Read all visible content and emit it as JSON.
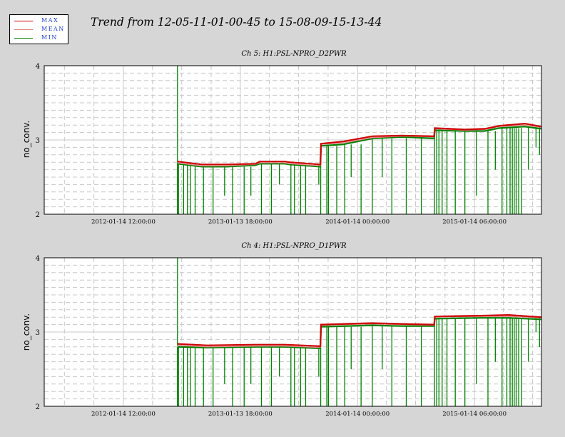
{
  "page_title": "Trend from 12-05-11-01-00-45 to 15-08-09-15-13-44",
  "legend": {
    "items": [
      {
        "label": "MAX",
        "color": "#cc0000"
      },
      {
        "label": "MEAN",
        "color": "#e08080"
      },
      {
        "label": "MIN",
        "color": "#008000"
      }
    ]
  },
  "colors": {
    "max": "#cc0000",
    "mean": "#e08080",
    "min": "#008000",
    "grid": "#c8c8c8"
  },
  "chart_data": [
    {
      "type": "line",
      "title": "Ch 5: H1:PSL-NPRO_D2PWR",
      "ylabel": "no_conv.",
      "xlabel": "",
      "ylim": [
        2,
        4
      ],
      "yticks": [
        2,
        3,
        4
      ],
      "xlim": [
        "2011-05-12",
        "2015-08-11"
      ],
      "xticks": [
        {
          "date": "2012-01-14",
          "label": "2012-01-14 12:00:00"
        },
        {
          "date": "2013-01-13",
          "label": "2013-01-13 18:00:00"
        },
        {
          "date": "2014-01-14",
          "label": "2014-01-14 00:00:00"
        },
        {
          "date": "2015-01-14",
          "label": "2015-01-14 06:00:00"
        }
      ],
      "data_start": "2012-07-01",
      "spike": {
        "date": "2012-07-01",
        "min": 2.68,
        "max": 4.0
      },
      "series": [
        {
          "name": "MAX",
          "points": [
            [
              "2012-07-01",
              2.71
            ],
            [
              "2012-09-15",
              2.67
            ],
            [
              "2012-12-01",
              2.67
            ],
            [
              "2013-03-01",
              2.68
            ],
            [
              "2013-03-15",
              2.71
            ],
            [
              "2013-06-01",
              2.71
            ],
            [
              "2013-06-15",
              2.7
            ],
            [
              "2013-09-20",
              2.67
            ],
            [
              "2013-09-22",
              2.95
            ],
            [
              "2013-12-01",
              2.98
            ],
            [
              "2014-03-01",
              3.05
            ],
            [
              "2014-06-01",
              3.06
            ],
            [
              "2014-09-10",
              3.05
            ],
            [
              "2014-09-12",
              3.16
            ],
            [
              "2014-12-15",
              3.14
            ],
            [
              "2015-02-15",
              3.15
            ],
            [
              "2015-04-01",
              3.19
            ],
            [
              "2015-06-20",
              3.22
            ],
            [
              "2015-08-11",
              3.18
            ]
          ]
        },
        {
          "name": "MEAN",
          "points": [
            [
              "2012-07-01",
              2.69
            ],
            [
              "2012-09-15",
              2.65
            ],
            [
              "2012-12-01",
              2.65
            ],
            [
              "2013-03-01",
              2.67
            ],
            [
              "2013-03-15",
              2.69
            ],
            [
              "2013-06-01",
              2.69
            ],
            [
              "2013-06-15",
              2.68
            ],
            [
              "2013-09-20",
              2.65
            ],
            [
              "2013-09-22",
              2.94
            ],
            [
              "2013-12-01",
              2.96
            ],
            [
              "2014-03-01",
              3.03
            ],
            [
              "2014-06-01",
              3.05
            ],
            [
              "2014-09-10",
              3.04
            ],
            [
              "2014-09-12",
              3.15
            ],
            [
              "2014-12-15",
              3.13
            ],
            [
              "2015-02-15",
              3.14
            ],
            [
              "2015-04-01",
              3.18
            ],
            [
              "2015-06-20",
              3.2
            ],
            [
              "2015-08-11",
              3.17
            ]
          ]
        },
        {
          "name": "MIN",
          "points": [
            [
              "2012-07-01",
              2.68
            ],
            [
              "2012-09-15",
              2.64
            ],
            [
              "2012-12-01",
              2.64
            ],
            [
              "2013-03-01",
              2.66
            ],
            [
              "2013-03-15",
              2.68
            ],
            [
              "2013-06-01",
              2.68
            ],
            [
              "2013-06-15",
              2.67
            ],
            [
              "2013-09-20",
              2.64
            ],
            [
              "2013-09-22",
              2.92
            ],
            [
              "2013-12-01",
              2.94
            ],
            [
              "2014-03-01",
              3.02
            ],
            [
              "2014-06-01",
              3.04
            ],
            [
              "2014-09-10",
              3.02
            ],
            [
              "2014-09-12",
              3.13
            ],
            [
              "2014-12-15",
              3.12
            ],
            [
              "2015-02-15",
              3.12
            ],
            [
              "2015-04-01",
              3.16
            ],
            [
              "2015-06-20",
              3.18
            ],
            [
              "2015-08-11",
              3.15
            ]
          ]
        }
      ],
      "dropouts": [
        {
          "date": "2012-07-04",
          "min": 2.0
        },
        {
          "date": "2012-07-20",
          "min": 2.0
        },
        {
          "date": "2012-08-01",
          "min": 2.0
        },
        {
          "date": "2012-08-10",
          "min": 2.0
        },
        {
          "date": "2012-08-25",
          "min": 2.0
        },
        {
          "date": "2012-09-20",
          "min": 2.0
        },
        {
          "date": "2012-10-20",
          "min": 2.0
        },
        {
          "date": "2012-11-25",
          "min": 2.25
        },
        {
          "date": "2012-12-20",
          "min": 2.0
        },
        {
          "date": "2013-01-25",
          "min": 2.0
        },
        {
          "date": "2013-02-15",
          "min": 2.25
        },
        {
          "date": "2013-03-20",
          "min": 2.0
        },
        {
          "date": "2013-04-20",
          "min": 2.0
        },
        {
          "date": "2013-05-15",
          "min": 2.4
        },
        {
          "date": "2013-06-20",
          "min": 2.0
        },
        {
          "date": "2013-07-01",
          "min": 2.0
        },
        {
          "date": "2013-07-20",
          "min": 2.0
        },
        {
          "date": "2013-08-05",
          "min": 2.0
        },
        {
          "date": "2013-09-15",
          "min": 2.4
        },
        {
          "date": "2013-09-21",
          "min": 2.0
        },
        {
          "date": "2013-10-10",
          "min": 2.0
        },
        {
          "date": "2013-10-15",
          "min": 2.0
        },
        {
          "date": "2013-11-10",
          "min": 2.0
        },
        {
          "date": "2013-12-05",
          "min": 2.0
        },
        {
          "date": "2013-12-25",
          "min": 2.5
        },
        {
          "date": "2014-01-25",
          "min": 2.0
        },
        {
          "date": "2014-03-01",
          "min": 2.0
        },
        {
          "date": "2014-04-01",
          "min": 2.5
        },
        {
          "date": "2014-05-01",
          "min": 2.0
        },
        {
          "date": "2014-06-15",
          "min": 2.0
        },
        {
          "date": "2014-08-01",
          "min": 2.0
        },
        {
          "date": "2014-09-11",
          "min": 2.0
        },
        {
          "date": "2014-09-18",
          "min": 2.0
        },
        {
          "date": "2014-09-25",
          "min": 2.0
        },
        {
          "date": "2014-10-05",
          "min": 2.0
        },
        {
          "date": "2014-10-20",
          "min": 2.0
        },
        {
          "date": "2014-11-15",
          "min": 2.0
        },
        {
          "date": "2014-12-15",
          "min": 2.0
        },
        {
          "date": "2015-01-20",
          "min": 2.25
        },
        {
          "date": "2015-02-25",
          "min": 2.0
        },
        {
          "date": "2015-03-20",
          "min": 2.6
        },
        {
          "date": "2015-04-10",
          "min": 2.0
        },
        {
          "date": "2015-04-25",
          "min": 2.0
        },
        {
          "date": "2015-05-05",
          "min": 2.0
        },
        {
          "date": "2015-05-12",
          "min": 2.0
        },
        {
          "date": "2015-05-18",
          "min": 2.0
        },
        {
          "date": "2015-05-24",
          "min": 2.0
        },
        {
          "date": "2015-06-01",
          "min": 2.0
        },
        {
          "date": "2015-06-10",
          "min": 2.0
        },
        {
          "date": "2015-07-01",
          "min": 2.6
        },
        {
          "date": "2015-07-25",
          "min": 2.9
        },
        {
          "date": "2015-08-05",
          "min": 2.8
        }
      ]
    },
    {
      "type": "line",
      "title": "Ch 4: H1:PSL-NPRO_D1PWR",
      "ylabel": "no_conv.",
      "xlabel": "",
      "ylim": [
        2,
        4
      ],
      "yticks": [
        2,
        3,
        4
      ],
      "xlim": [
        "2011-05-12",
        "2015-08-11"
      ],
      "xticks": [
        {
          "date": "2012-01-14",
          "label": "2012-01-14 12:00:00"
        },
        {
          "date": "2013-01-13",
          "label": "2013-01-13 18:00:00"
        },
        {
          "date": "2014-01-14",
          "label": "2014-01-14 00:00:00"
        },
        {
          "date": "2015-01-14",
          "label": "2015-01-14 06:00:00"
        }
      ],
      "data_start": "2012-07-01",
      "spike": {
        "date": "2012-07-01",
        "min": 2.81,
        "max": 4.0
      },
      "series": [
        {
          "name": "MAX",
          "points": [
            [
              "2012-07-01",
              2.84
            ],
            [
              "2012-10-01",
              2.82
            ],
            [
              "2013-03-01",
              2.83
            ],
            [
              "2013-06-01",
              2.83
            ],
            [
              "2013-09-20",
              2.81
            ],
            [
              "2013-09-22",
              3.1
            ],
            [
              "2014-03-01",
              3.12
            ],
            [
              "2014-06-01",
              3.11
            ],
            [
              "2014-09-10",
              3.1
            ],
            [
              "2014-09-12",
              3.21
            ],
            [
              "2015-02-01",
              3.22
            ],
            [
              "2015-05-01",
              3.23
            ],
            [
              "2015-08-11",
              3.2
            ]
          ]
        },
        {
          "name": "MEAN",
          "points": [
            [
              "2012-07-01",
              2.82
            ],
            [
              "2012-10-01",
              2.8
            ],
            [
              "2013-03-01",
              2.81
            ],
            [
              "2013-06-01",
              2.81
            ],
            [
              "2013-09-20",
              2.79
            ],
            [
              "2013-09-22",
              3.09
            ],
            [
              "2014-03-01",
              3.11
            ],
            [
              "2014-06-01",
              3.1
            ],
            [
              "2014-09-10",
              3.09
            ],
            [
              "2014-09-12",
              3.2
            ],
            [
              "2015-02-01",
              3.21
            ],
            [
              "2015-05-01",
              3.21
            ],
            [
              "2015-08-11",
              3.19
            ]
          ]
        },
        {
          "name": "MIN",
          "points": [
            [
              "2012-07-01",
              2.8
            ],
            [
              "2012-10-01",
              2.79
            ],
            [
              "2013-03-01",
              2.8
            ],
            [
              "2013-06-01",
              2.8
            ],
            [
              "2013-09-20",
              2.78
            ],
            [
              "2013-09-22",
              3.07
            ],
            [
              "2014-03-01",
              3.09
            ],
            [
              "2014-06-01",
              3.08
            ],
            [
              "2014-09-10",
              3.08
            ],
            [
              "2014-09-12",
              3.18
            ],
            [
              "2015-02-01",
              3.19
            ],
            [
              "2015-05-01",
              3.19
            ],
            [
              "2015-08-11",
              3.17
            ]
          ]
        }
      ],
      "dropouts": [
        {
          "date": "2012-07-04",
          "min": 2.0
        },
        {
          "date": "2012-07-20",
          "min": 2.0
        },
        {
          "date": "2012-08-01",
          "min": 2.0
        },
        {
          "date": "2012-08-10",
          "min": 2.0
        },
        {
          "date": "2012-08-25",
          "min": 2.0
        },
        {
          "date": "2012-09-20",
          "min": 2.0
        },
        {
          "date": "2012-10-20",
          "min": 2.0
        },
        {
          "date": "2012-11-25",
          "min": 2.3
        },
        {
          "date": "2012-12-20",
          "min": 2.0
        },
        {
          "date": "2013-01-25",
          "min": 2.0
        },
        {
          "date": "2013-02-15",
          "min": 2.3
        },
        {
          "date": "2013-03-20",
          "min": 2.0
        },
        {
          "date": "2013-04-20",
          "min": 2.0
        },
        {
          "date": "2013-05-15",
          "min": 2.4
        },
        {
          "date": "2013-06-20",
          "min": 2.0
        },
        {
          "date": "2013-07-01",
          "min": 2.0
        },
        {
          "date": "2013-07-20",
          "min": 2.0
        },
        {
          "date": "2013-08-05",
          "min": 2.0
        },
        {
          "date": "2013-09-15",
          "min": 2.4
        },
        {
          "date": "2013-09-21",
          "min": 2.0
        },
        {
          "date": "2013-10-10",
          "min": 2.0
        },
        {
          "date": "2013-10-15",
          "min": 2.0
        },
        {
          "date": "2013-11-10",
          "min": 2.0
        },
        {
          "date": "2013-12-05",
          "min": 2.0
        },
        {
          "date": "2013-12-25",
          "min": 2.5
        },
        {
          "date": "2014-01-25",
          "min": 2.0
        },
        {
          "date": "2014-03-01",
          "min": 2.0
        },
        {
          "date": "2014-04-01",
          "min": 2.5
        },
        {
          "date": "2014-05-01",
          "min": 2.0
        },
        {
          "date": "2014-06-15",
          "min": 2.0
        },
        {
          "date": "2014-08-01",
          "min": 2.0
        },
        {
          "date": "2014-09-11",
          "min": 2.0
        },
        {
          "date": "2014-09-18",
          "min": 2.0
        },
        {
          "date": "2014-09-25",
          "min": 2.0
        },
        {
          "date": "2014-10-05",
          "min": 2.0
        },
        {
          "date": "2014-10-20",
          "min": 2.0
        },
        {
          "date": "2014-11-15",
          "min": 2.0
        },
        {
          "date": "2014-12-15",
          "min": 2.0
        },
        {
          "date": "2015-01-20",
          "min": 2.3
        },
        {
          "date": "2015-02-25",
          "min": 2.0
        },
        {
          "date": "2015-03-20",
          "min": 2.6
        },
        {
          "date": "2015-04-10",
          "min": 2.0
        },
        {
          "date": "2015-04-25",
          "min": 2.0
        },
        {
          "date": "2015-05-05",
          "min": 2.0
        },
        {
          "date": "2015-05-12",
          "min": 2.0
        },
        {
          "date": "2015-05-18",
          "min": 2.0
        },
        {
          "date": "2015-05-24",
          "min": 2.0
        },
        {
          "date": "2015-06-01",
          "min": 2.0
        },
        {
          "date": "2015-06-10",
          "min": 2.0
        },
        {
          "date": "2015-07-01",
          "min": 2.6
        },
        {
          "date": "2015-07-25",
          "min": 3.0
        },
        {
          "date": "2015-08-05",
          "min": 2.8
        }
      ]
    }
  ]
}
